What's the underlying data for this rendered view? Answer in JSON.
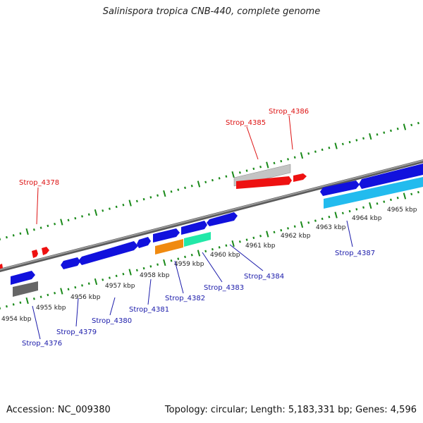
{
  "title": "Salinispora tropica CNB-440, complete genome",
  "accession": "Accession: NC_009380",
  "topology": "Topology: circular; Length: 5,183,331 bp; Genes: 4,596",
  "colors": {
    "backbone": "#7a7a7a",
    "tick": "#1a8a1a",
    "forward_gene": "#1111dd",
    "red_gene": "#ee1111",
    "grey_gene": "#bdbdbd",
    "dark_grey_gene": "#666666",
    "orange_gene": "#f08a10",
    "teal_gene": "#22e8a8",
    "cyan_gene": "#22bbee",
    "red_label": "#dd1111",
    "blue_label": "#1a1aaa"
  },
  "scale_labels": [
    "4954 kbp",
    "4955 kbp",
    "4956 kbp",
    "4957 kbp",
    "4958 kbp",
    "4959 kbp",
    "4960 kbp",
    "4961 kbp",
    "4962 kbp",
    "4963 kbp",
    "4964 kbp",
    "4965 kbp"
  ],
  "gene_labels": {
    "red": [
      "Strop_4378",
      "Strop_4385",
      "Strop_4386"
    ],
    "blue": [
      "Strop_4376",
      "Strop_4379",
      "Strop_4380",
      "Strop_4381",
      "Strop_4382",
      "Strop_4383",
      "Strop_4384",
      "Strop_4387"
    ]
  }
}
